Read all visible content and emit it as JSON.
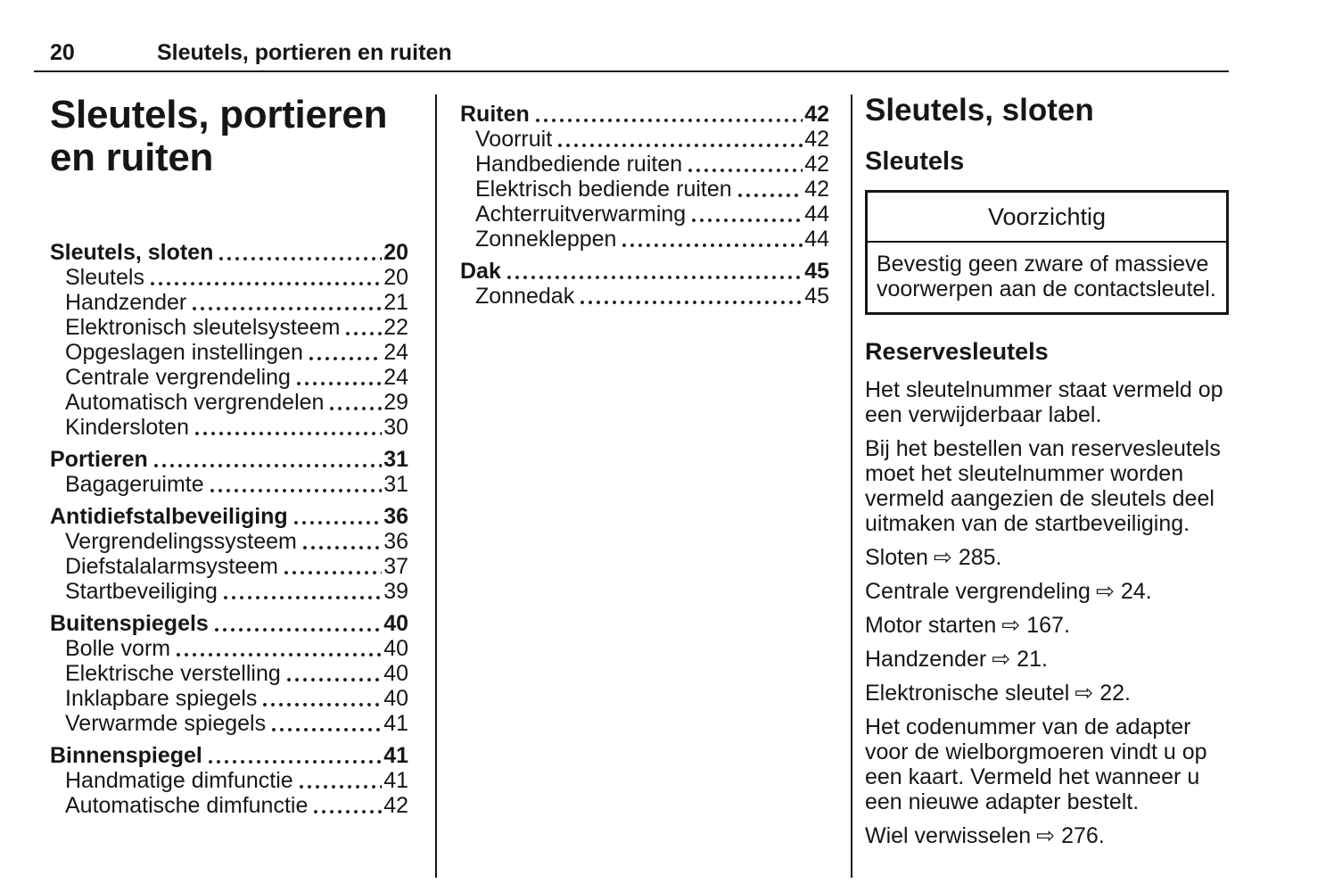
{
  "header": {
    "page_number": "20",
    "chapter_title": "Sleutels, portieren en ruiten"
  },
  "toc": {
    "title_lines": [
      "Sleutels, portieren",
      "en ruiten"
    ],
    "groups": [
      {
        "main": {
          "label": "Sleutels, sloten",
          "page": "20"
        },
        "subs": [
          {
            "label": "Sleutels",
            "page": "20"
          },
          {
            "label": "Handzender",
            "page": "21"
          },
          {
            "label": "Elektronisch sleutelsysteem",
            "page": "22"
          },
          {
            "label": "Opgeslagen instellingen",
            "page": "24"
          },
          {
            "label": "Centrale vergrendeling",
            "page": "24"
          },
          {
            "label": "Automatisch vergrendelen",
            "page": "29"
          },
          {
            "label": "Kindersloten",
            "page": "30"
          }
        ]
      },
      {
        "main": {
          "label": "Portieren",
          "page": "31"
        },
        "subs": [
          {
            "label": "Bagageruimte",
            "page": "31"
          }
        ]
      },
      {
        "main": {
          "label": "Antidiefstalbeveiliging",
          "page": "36"
        },
        "subs": [
          {
            "label": "Vergrendelingssysteem",
            "page": "36"
          },
          {
            "label": "Diefstalalarmsysteem",
            "page": "37"
          },
          {
            "label": "Startbeveiliging",
            "page": "39"
          }
        ]
      },
      {
        "main": {
          "label": "Buitenspiegels",
          "page": "40"
        },
        "subs": [
          {
            "label": "Bolle vorm",
            "page": "40"
          },
          {
            "label": "Elektrische verstelling",
            "page": "40"
          },
          {
            "label": "Inklapbare spiegels",
            "page": "40"
          },
          {
            "label": "Verwarmde spiegels",
            "page": "41"
          }
        ]
      },
      {
        "main": {
          "label": "Binnenspiegel",
          "page": "41"
        },
        "subs": [
          {
            "label": "Handmatige dimfunctie",
            "page": "41"
          },
          {
            "label": "Automatische dimfunctie",
            "page": "42"
          }
        ]
      },
      {
        "main": {
          "label": "Ruiten",
          "page": "42"
        },
        "subs": [
          {
            "label": "Voorruit",
            "page": "42"
          },
          {
            "label": "Handbediende ruiten",
            "page": "42"
          },
          {
            "label": "Elektrisch bediende ruiten",
            "page": "42"
          },
          {
            "label": "Achterruitverwarming",
            "page": "44"
          },
          {
            "label": "Zonnekleppen",
            "page": "44"
          }
        ]
      },
      {
        "main": {
          "label": "Dak",
          "page": "45"
        },
        "subs": [
          {
            "label": "Zonnedak",
            "page": "45"
          }
        ]
      }
    ]
  },
  "content": {
    "section_title": "Sleutels, sloten",
    "subsection_title": "Sleutels",
    "caution": {
      "title": "Voorzichtig",
      "body": "Bevestig geen zware of massieve voorwerpen aan de contactsleutel."
    },
    "subheading": "Reservesleutels",
    "paragraphs": [
      "Het sleutelnummer staat vermeld op een verwijderbaar label.",
      "Bij het bestellen van reservesleutels moet het sleutelnummer worden vermeld aangezien de sleutels deel uitmaken van de startbeveiliging."
    ],
    "references": [
      {
        "label": "Sloten",
        "target": "285."
      },
      {
        "label": "Centrale vergrendeling",
        "target": "24."
      },
      {
        "label": "Motor starten",
        "target": "167."
      },
      {
        "label": "Handzender",
        "target": "21."
      },
      {
        "label": "Elektronische sleutel",
        "target": "22."
      },
      {
        "label": "Wiel verwisselen",
        "target": "276."
      }
    ],
    "paragraph_adapter": "Het codenummer van de adapter voor de wielborgmoeren vindt u op een kaart. Vermeld het wanneer u een nieuwe adapter bestelt.",
    "symbols": {
      "page_ref_arrow": "⇨"
    }
  }
}
